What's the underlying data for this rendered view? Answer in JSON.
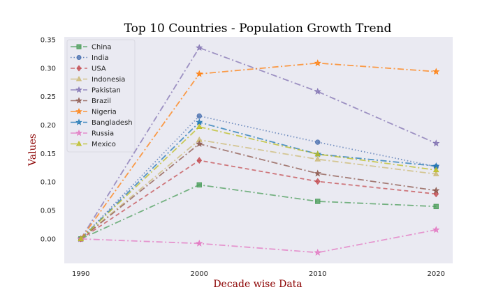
{
  "chart_data": {
    "type": "line",
    "title": "Top 10 Countries - Population Growth Trend",
    "xlabel": "Decade wise Data",
    "ylabel": "Values",
    "x": [
      1990,
      2000,
      2010,
      2020
    ],
    "x_ticks": [
      "1990",
      "2000",
      "2010",
      "2020"
    ],
    "y_ticks": [
      "0.00",
      "0.05",
      "0.10",
      "0.15",
      "0.20",
      "0.25",
      "0.30",
      "0.35"
    ],
    "ylim": [
      -0.043,
      0.355
    ],
    "xlim": [
      1988.6,
      2021.4
    ],
    "grid": false,
    "legend_position": "top-left",
    "background": "#eaeaf2",
    "series": [
      {
        "name": "China",
        "values": [
          0.0,
          0.095,
          0.066,
          0.057
        ],
        "color": "#4c9e5b",
        "marker": "square",
        "dash": "dashdot"
      },
      {
        "name": "India",
        "values": [
          0.0,
          0.216,
          0.17,
          0.127
        ],
        "color": "#4c72b0",
        "marker": "circle",
        "dash": "dotted"
      },
      {
        "name": "USA",
        "values": [
          0.0,
          0.138,
          0.101,
          0.079
        ],
        "color": "#c44e52",
        "marker": "diamond",
        "dash": "dashed"
      },
      {
        "name": "Indonesia",
        "values": [
          0.0,
          0.174,
          0.14,
          0.114
        ],
        "color": "#ccb974",
        "marker": "triangle",
        "dash": "dashdot"
      },
      {
        "name": "Pakistan",
        "values": [
          0.0,
          0.336,
          0.259,
          0.168
        ],
        "color": "#8172b2",
        "marker": "star",
        "dash": "dashdot"
      },
      {
        "name": "Brazil",
        "values": [
          0.0,
          0.167,
          0.115,
          0.085
        ],
        "color": "#8c564b",
        "marker": "star",
        "dash": "dashdot"
      },
      {
        "name": "Nigeria",
        "values": [
          0.0,
          0.29,
          0.309,
          0.294
        ],
        "color": "#ff7f0e",
        "marker": "star",
        "dash": "dashdot"
      },
      {
        "name": "Bangladesh",
        "values": [
          0.0,
          0.205,
          0.149,
          0.128
        ],
        "color": "#1f77b4",
        "marker": "star",
        "dash": "dashdot"
      },
      {
        "name": "Russia",
        "values": [
          0.0,
          -0.008,
          -0.024,
          0.016
        ],
        "color": "#e377c2",
        "marker": "star",
        "dash": "dashdot"
      },
      {
        "name": "Mexico",
        "values": [
          0.0,
          0.197,
          0.149,
          0.121
        ],
        "color": "#bcbd22",
        "marker": "triangle",
        "dash": "dashdot"
      }
    ]
  }
}
